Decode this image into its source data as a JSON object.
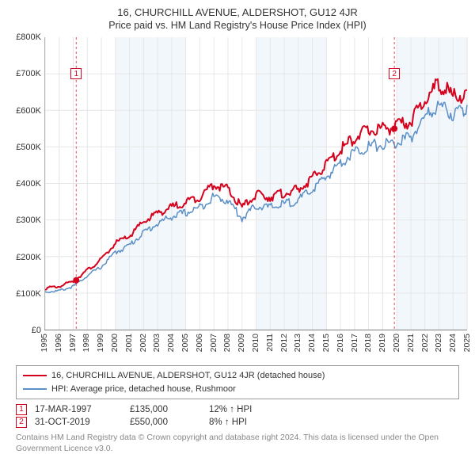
{
  "title": "16, CHURCHILL AVENUE, ALDERSHOT, GU12 4JR",
  "subtitle": "Price paid vs. HM Land Registry's House Price Index (HPI)",
  "chart": {
    "type": "line",
    "background_color": "#ffffff",
    "plot_alt_band_color": "#f2f7fb",
    "grid_color": "#e6e6e6",
    "axis_color": "#808080",
    "ylim": [
      0,
      800000
    ],
    "ytick_step": 100000,
    "y_ticks": [
      "£0",
      "£100K",
      "£200K",
      "£300K",
      "£400K",
      "£500K",
      "£600K",
      "£700K",
      "£800K"
    ],
    "xlim": [
      1995,
      2025
    ],
    "x_ticks": [
      1995,
      1996,
      1997,
      1998,
      1999,
      2000,
      2001,
      2002,
      2003,
      2004,
      2005,
      2006,
      2007,
      2008,
      2009,
      2010,
      2011,
      2012,
      2013,
      2014,
      2015,
      2016,
      2017,
      2018,
      2019,
      2020,
      2021,
      2022,
      2023,
      2024,
      2025
    ],
    "tick_fontsize": 11,
    "series": [
      {
        "name": "property",
        "label": "16, CHURCHILL AVENUE, ALDERSHOT, GU12 4JR (detached house)",
        "color": "#d4021d",
        "line_width": 2,
        "x": [
          1995,
          1996,
          1997,
          1998,
          1999,
          2000,
          2001,
          2002,
          2003,
          2004,
          2005,
          2006,
          2007,
          2008,
          2009,
          2010,
          2011,
          2012,
          2013,
          2014,
          2015,
          2016,
          2017,
          2018,
          2019,
          2020,
          2021,
          2022,
          2023,
          2024,
          2025
        ],
        "y": [
          115000,
          120000,
          135000,
          165000,
          195000,
          240000,
          260000,
          300000,
          325000,
          340000,
          355000,
          370000,
          405000,
          390000,
          340000,
          375000,
          370000,
          380000,
          390000,
          420000,
          460000,
          500000,
          535000,
          555000,
          560000,
          565000,
          580000,
          640000,
          685000,
          650000,
          655000
        ]
      },
      {
        "name": "hpi",
        "label": "HPI: Average price, detached house, Rushmoor",
        "color": "#5b8fc7",
        "line_width": 1.5,
        "x": [
          1995,
          1996,
          1997,
          1998,
          1999,
          2000,
          2001,
          2002,
          2003,
          2004,
          2005,
          2006,
          2007,
          2008,
          2009,
          2010,
          2011,
          2012,
          2013,
          2014,
          2015,
          2016,
          2017,
          2018,
          2019,
          2020,
          2021,
          2022,
          2023,
          2024,
          2025
        ],
        "y": [
          105000,
          108000,
          120000,
          150000,
          175000,
          215000,
          235000,
          270000,
          295000,
          315000,
          325000,
          340000,
          370000,
          360000,
          310000,
          345000,
          340000,
          350000,
          360000,
          390000,
          425000,
          465000,
          495000,
          510000,
          515000,
          520000,
          535000,
          590000,
          625000,
          600000,
          615000
        ]
      }
    ],
    "markers": [
      {
        "num": "1",
        "x": 1997.21,
        "y": 135000,
        "color": "#d4021d",
        "dashed_line": true,
        "label_y_top": 700000
      },
      {
        "num": "2",
        "x": 2019.83,
        "y": 550000,
        "color": "#d4021d",
        "dashed_line": true,
        "label_y_top": 700000
      }
    ]
  },
  "legend": {
    "items": [
      {
        "color": "#d4021d",
        "width": 2,
        "label": "16, CHURCHILL AVENUE, ALDERSHOT, GU12 4JR (detached house)"
      },
      {
        "color": "#5b8fc7",
        "width": 1.5,
        "label": "HPI: Average price, detached house, Rushmoor"
      }
    ]
  },
  "sales": [
    {
      "num": "1",
      "date": "17-MAR-1997",
      "price": "£135,000",
      "pct": "12% ↑ HPI",
      "color": "#d4021d"
    },
    {
      "num": "2",
      "date": "31-OCT-2019",
      "price": "£550,000",
      "pct": "8% ↑ HPI",
      "color": "#d4021d"
    }
  ],
  "footnote": "Contains HM Land Registry data © Crown copyright and database right 2024. This data is licensed under the Open Government Licence v3.0."
}
